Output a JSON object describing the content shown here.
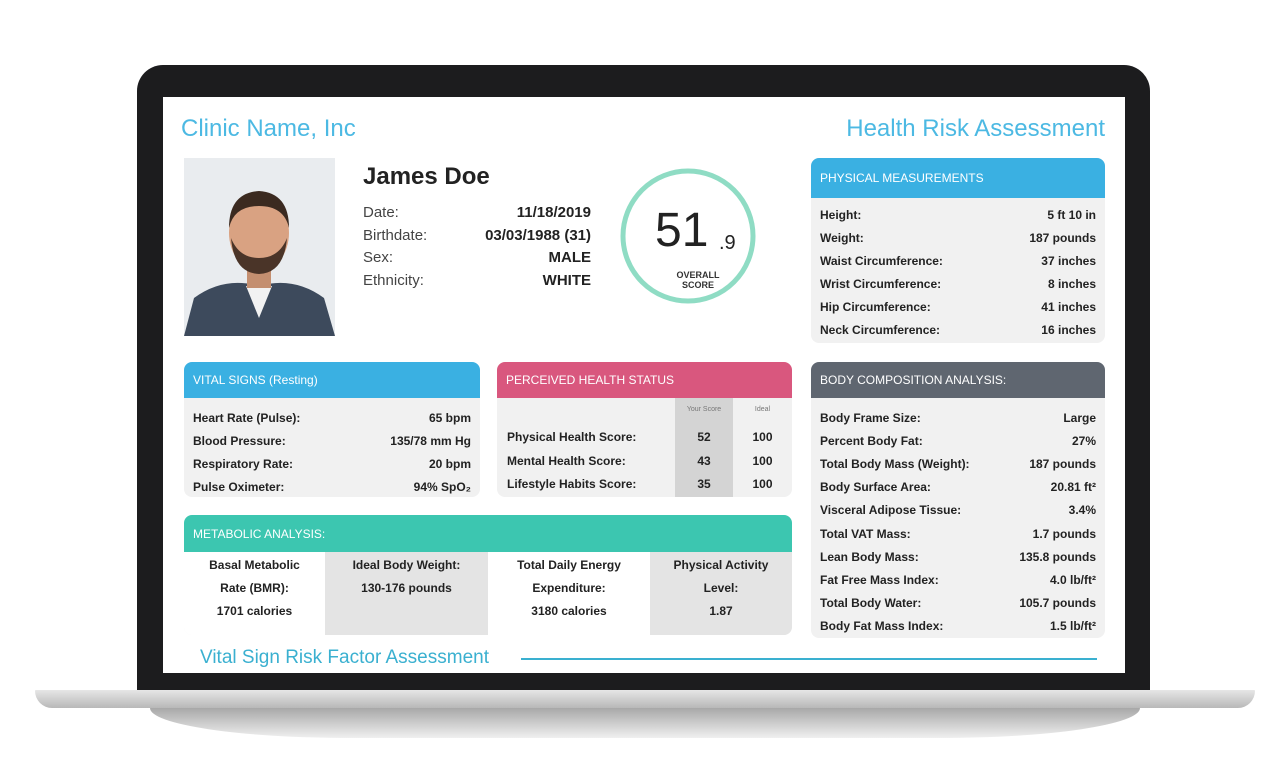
{
  "header": {
    "clinic": "Clinic Name, Inc",
    "title": "Health Risk Assessment"
  },
  "patient": {
    "name": "James Doe",
    "fields": [
      {
        "label": "Date:",
        "value": "11/18/2019"
      },
      {
        "label": "Birthdate:",
        "value": "03/03/1988 (31)"
      },
      {
        "label": "Sex:",
        "value": "MALE"
      },
      {
        "label": "Ethnicity:",
        "value": "WHITE"
      }
    ],
    "score": {
      "whole": "51",
      "decimal": ".9",
      "label": "OVERALL SCORE"
    }
  },
  "physical": {
    "title": "PHYSICAL MEASUREMENTS",
    "rows": [
      [
        "Height:",
        "5 ft 10 in"
      ],
      [
        "Weight:",
        "187 pounds"
      ],
      [
        "Waist Circumference:",
        "37 inches"
      ],
      [
        "Wrist Circumference:",
        "8 inches"
      ],
      [
        "Hip Circumference:",
        "41 inches"
      ],
      [
        "Neck Circumference:",
        "16 inches"
      ]
    ]
  },
  "vitals": {
    "title": "VITAL SIGNS (Resting)",
    "rows": [
      [
        "Heart Rate (Pulse):",
        "65 bpm"
      ],
      [
        "Blood Pressure:",
        "135/78 mm Hg"
      ],
      [
        "Respiratory Rate:",
        "20 bpm"
      ],
      [
        "Pulse Oximeter:",
        "94% SpO₂"
      ]
    ]
  },
  "perceived": {
    "title": "PERCEIVED HEALTH STATUS",
    "columns": [
      "Your Score",
      "Ideal"
    ],
    "rows": [
      [
        "Physical Health Score:",
        "52",
        "100"
      ],
      [
        "Mental Health Score:",
        "43",
        "100"
      ],
      [
        "Lifestyle Habits Score:",
        "35",
        "100"
      ]
    ]
  },
  "body": {
    "title": "BODY COMPOSITION ANALYSIS:",
    "rows": [
      [
        "Body Frame Size:",
        "Large"
      ],
      [
        "Percent Body Fat:",
        "27%"
      ],
      [
        "Total Body Mass (Weight):",
        "187 pounds"
      ],
      [
        "Body Surface Area:",
        "20.81 ft²"
      ],
      [
        "Visceral Adipose Tissue:",
        "3.4%"
      ],
      [
        "Total VAT Mass:",
        "1.7 pounds"
      ],
      [
        "Lean Body Mass:",
        "135.8 pounds"
      ],
      [
        "Fat Free Mass Index:",
        "4.0 lb/ft²"
      ],
      [
        "Total Body Water:",
        "105.7 pounds"
      ],
      [
        "Body Fat Mass Index:",
        "1.5 lb/ft²"
      ]
    ]
  },
  "metabolic": {
    "title": "METABOLIC ANALYSIS:",
    "cells": [
      {
        "label": "Basal Metabolic Rate (BMR):",
        "value": "1701 calories"
      },
      {
        "label": "Ideal Body Weight:",
        "value": "130-176 pounds"
      },
      {
        "label": "Total Daily Energy Expenditure:",
        "value": "3180 calories"
      },
      {
        "label": "Physical Activity Level:",
        "value": "1.87"
      }
    ]
  },
  "section": "Vital Sign Risk Factor Assessment"
}
